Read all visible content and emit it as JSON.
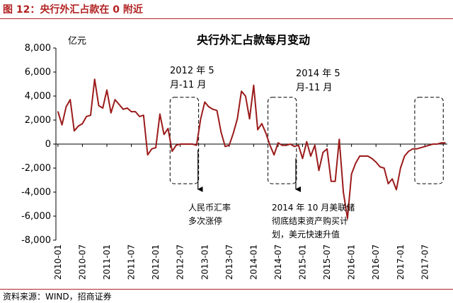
{
  "figure_title": "图 12：央行外汇占款在 0 附近",
  "source": "资料来源：WIND，招商证券",
  "chart_data": {
    "type": "line",
    "title": "央行外汇占款每月变动",
    "ylabel": "亿元",
    "xlabel": "",
    "ylim": [
      -8000,
      8000
    ],
    "yticks": [
      8000,
      6000,
      4000,
      2000,
      0,
      -2000,
      -4000,
      -6000,
      -8000
    ],
    "ytick_labels": [
      "8,000",
      "6,000",
      "4,000",
      "2,000",
      "0",
      "-2,000",
      "-4,000",
      "-6,000",
      "-8,000"
    ],
    "xtick_labels": [
      "2010-01",
      "2010-07",
      "2011-01",
      "2011-07",
      "2012-01",
      "2012-07",
      "2013-01",
      "2013-07",
      "2014-01",
      "2014-07",
      "2015-01",
      "2015-07",
      "2016-01",
      "2016-07",
      "2017-01",
      "2017-07"
    ],
    "series": [
      {
        "color": "#9b1b1b",
        "start": "2010-01",
        "values": [
          2700,
          1600,
          3100,
          3700,
          1100,
          1500,
          1700,
          2300,
          2400,
          5400,
          3200,
          3000,
          4500,
          2600,
          3700,
          3300,
          2900,
          3000,
          2700,
          2700,
          2300,
          2400,
          -900,
          -400,
          -300,
          2500,
          800,
          1300,
          -600,
          -100,
          0,
          0,
          0,
          0,
          -100,
          2100,
          3500,
          3100,
          2900,
          2800,
          1000,
          -200,
          -100,
          900,
          2100,
          4400,
          4000,
          2100,
          4900,
          1200,
          1700,
          900,
          -100,
          -900,
          100,
          -100,
          -100,
          0,
          -200,
          -100,
          -1200,
          200,
          -1000,
          -100,
          -2200,
          -700,
          -400,
          -3100,
          -3100,
          400,
          -4000,
          -6200,
          -2500,
          -1600,
          -1000,
          -1000,
          -1000,
          -1200,
          -1500,
          -1900,
          -2000,
          -3300,
          -2900,
          -3800,
          -2000,
          -1000,
          -600,
          -400,
          -400,
          -300,
          -200,
          -100,
          0,
          0,
          100,
          100
        ]
      }
    ],
    "annotations": [
      {
        "text_lines": [
          "2012 年 5",
          "月-11 月"
        ]
      },
      {
        "text_lines": [
          "2014 年 5",
          "月-11 月"
        ]
      },
      {
        "text_lines": [
          "人民币汇率",
          "多次涨停"
        ]
      },
      {
        "text_lines": [
          "2014 年 10 月美联储",
          "彻底结束资产购买计",
          "划，美元快速升值"
        ]
      }
    ],
    "highlight_ranges": [
      {
        "from": "2012-05",
        "to": "2012-11"
      },
      {
        "from": "2014-05",
        "to": "2014-11"
      },
      {
        "from": "2017-05",
        "to": "2017-11"
      }
    ],
    "grid": false
  }
}
